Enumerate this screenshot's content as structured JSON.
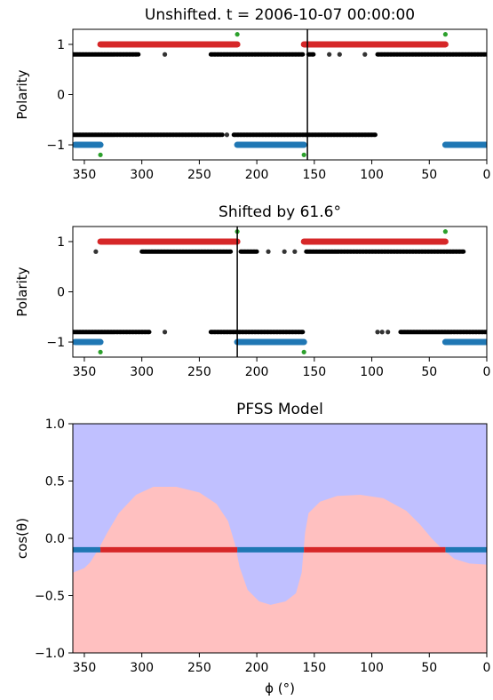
{
  "colors": {
    "positive_marker": "#d62728",
    "negative_marker": "#1f77b4",
    "observed_marker": "#000000",
    "flip_marker": "#2ca02c",
    "region_positive": "#ffc0c0",
    "region_negative": "#c0c0ff",
    "axis": "#000000"
  },
  "chart_data": [
    {
      "type": "scatter",
      "title": "Unshifted. t = 2006-10-07 00:00:00",
      "ylabel": "Polarity",
      "xlabel": "",
      "xlim": [
        360,
        0
      ],
      "ylim": [
        -1.3,
        1.3
      ],
      "xticks": [
        350,
        300,
        250,
        200,
        150,
        100,
        50,
        0
      ],
      "yticks": [
        {
          "value": 1,
          "label": "1"
        },
        {
          "value": 0,
          "label": "0"
        },
        {
          "value": -1,
          "label": "−1"
        }
      ],
      "vline_x": 156,
      "model_polarity": [
        {
          "x_from": 336,
          "x_to": 217,
          "y": 1,
          "series": "positive"
        },
        {
          "x_from": 159,
          "x_to": 36,
          "y": 1,
          "series": "positive"
        },
        {
          "x_from": 358,
          "x_to": 336,
          "y": -1,
          "series": "negative"
        },
        {
          "x_from": 217,
          "x_to": 159,
          "y": -1,
          "series": "negative"
        },
        {
          "x_from": 36,
          "x_to": 0,
          "y": -1,
          "series": "negative"
        }
      ],
      "observed_runs": [
        {
          "x_from": 360,
          "x_to": 303,
          "y": 0.8
        },
        {
          "x_from": 240,
          "x_to": 160,
          "y": 0.8
        },
        {
          "x_from": 155,
          "x_to": 150,
          "y": 0.8
        },
        {
          "x_from": 95,
          "x_to": 0,
          "y": 0.8
        },
        {
          "x_from": 360,
          "x_to": 230,
          "y": -0.8
        },
        {
          "x_from": 220,
          "x_to": 97,
          "y": -0.8
        }
      ],
      "observed_points": [
        {
          "x": 280,
          "y": 0.8
        },
        {
          "x": 137,
          "y": 0.8
        },
        {
          "x": 128,
          "y": 0.8
        },
        {
          "x": 106,
          "y": 0.8
        },
        {
          "x": 226,
          "y": -0.8
        }
      ],
      "flip_points": [
        {
          "x": 217,
          "y": 1.2
        },
        {
          "x": 36,
          "y": 1.2
        },
        {
          "x": 336,
          "y": -1.2
        },
        {
          "x": 159,
          "y": -1.2
        }
      ]
    },
    {
      "type": "scatter",
      "title": "Shifted by 61.6°",
      "ylabel": "Polarity",
      "xlabel": "",
      "xlim": [
        360,
        0
      ],
      "ylim": [
        -1.3,
        1.3
      ],
      "xticks": [
        350,
        300,
        250,
        200,
        150,
        100,
        50,
        0
      ],
      "yticks": [
        {
          "value": 1,
          "label": "1"
        },
        {
          "value": 0,
          "label": "0"
        },
        {
          "value": -1,
          "label": "−1"
        }
      ],
      "vline_x": 217,
      "model_polarity": [
        {
          "x_from": 336,
          "x_to": 217,
          "y": 1,
          "series": "positive"
        },
        {
          "x_from": 159,
          "x_to": 36,
          "y": 1,
          "series": "positive"
        },
        {
          "x_from": 358,
          "x_to": 336,
          "y": -1,
          "series": "negative"
        },
        {
          "x_from": 217,
          "x_to": 159,
          "y": -1,
          "series": "negative"
        },
        {
          "x_from": 36,
          "x_to": 0,
          "y": -1,
          "series": "negative"
        }
      ],
      "observed_runs": [
        {
          "x_from": 300,
          "x_to": 222,
          "y": 0.8
        },
        {
          "x_from": 214,
          "x_to": 200,
          "y": 0.8
        },
        {
          "x_from": 157,
          "x_to": 20,
          "y": 0.8
        },
        {
          "x_from": 360,
          "x_to": 293,
          "y": -0.8
        },
        {
          "x_from": 240,
          "x_to": 160,
          "y": -0.8
        },
        {
          "x_from": 75,
          "x_to": 0,
          "y": -0.8
        }
      ],
      "observed_points": [
        {
          "x": 340,
          "y": 0.8
        },
        {
          "x": 190,
          "y": 0.8
        },
        {
          "x": 176,
          "y": 0.8
        },
        {
          "x": 167,
          "y": 0.8
        },
        {
          "x": 280,
          "y": -0.8
        },
        {
          "x": 95,
          "y": -0.8
        },
        {
          "x": 91,
          "y": -0.8
        },
        {
          "x": 86,
          "y": -0.8
        }
      ],
      "flip_points": [
        {
          "x": 217,
          "y": 1.2
        },
        {
          "x": 36,
          "y": 1.2
        },
        {
          "x": 336,
          "y": -1.2
        },
        {
          "x": 159,
          "y": -1.2
        }
      ]
    },
    {
      "type": "area",
      "title": "PFSS Model",
      "ylabel": "cos(θ)",
      "xlabel": "ϕ (°)",
      "xlim": [
        360,
        0
      ],
      "ylim": [
        -1.0,
        1.0
      ],
      "xticks": [
        350,
        300,
        250,
        200,
        150,
        100,
        50,
        0
      ],
      "yticks": [
        {
          "value": 1.0,
          "label": "1.0"
        },
        {
          "value": 0.5,
          "label": "0.5"
        },
        {
          "value": 0.0,
          "label": "0.0"
        },
        {
          "value": -0.5,
          "label": "−0.5"
        },
        {
          "value": -1.0,
          "label": "−1.0"
        }
      ],
      "neutral_line": [
        {
          "x": 360,
          "y": -0.3
        },
        {
          "x": 350,
          "y": -0.26
        },
        {
          "x": 345,
          "y": -0.21
        },
        {
          "x": 338,
          "y": -0.1
        },
        {
          "x": 330,
          "y": 0.05
        },
        {
          "x": 320,
          "y": 0.22
        },
        {
          "x": 305,
          "y": 0.38
        },
        {
          "x": 290,
          "y": 0.45
        },
        {
          "x": 270,
          "y": 0.45
        },
        {
          "x": 250,
          "y": 0.4
        },
        {
          "x": 235,
          "y": 0.3
        },
        {
          "x": 225,
          "y": 0.15
        },
        {
          "x": 219,
          "y": -0.05
        },
        {
          "x": 215,
          "y": -0.25
        },
        {
          "x": 208,
          "y": -0.45
        },
        {
          "x": 198,
          "y": -0.55
        },
        {
          "x": 188,
          "y": -0.58
        },
        {
          "x": 175,
          "y": -0.55
        },
        {
          "x": 166,
          "y": -0.48
        },
        {
          "x": 161,
          "y": -0.3
        },
        {
          "x": 158,
          "y": 0.05
        },
        {
          "x": 155,
          "y": 0.22
        },
        {
          "x": 145,
          "y": 0.32
        },
        {
          "x": 130,
          "y": 0.37
        },
        {
          "x": 110,
          "y": 0.38
        },
        {
          "x": 90,
          "y": 0.35
        },
        {
          "x": 70,
          "y": 0.24
        },
        {
          "x": 58,
          "y": 0.12
        },
        {
          "x": 48,
          "y": 0.0
        },
        {
          "x": 38,
          "y": -0.1
        },
        {
          "x": 28,
          "y": -0.18
        },
        {
          "x": 15,
          "y": -0.22
        },
        {
          "x": 0,
          "y": -0.23
        }
      ],
      "trace_y": -0.1,
      "trace_positive": [
        [
          336,
          217
        ],
        [
          159,
          36
        ]
      ],
      "trace_negative": [
        [
          360,
          336
        ],
        [
          217,
          159
        ],
        [
          36,
          0
        ]
      ]
    }
  ]
}
